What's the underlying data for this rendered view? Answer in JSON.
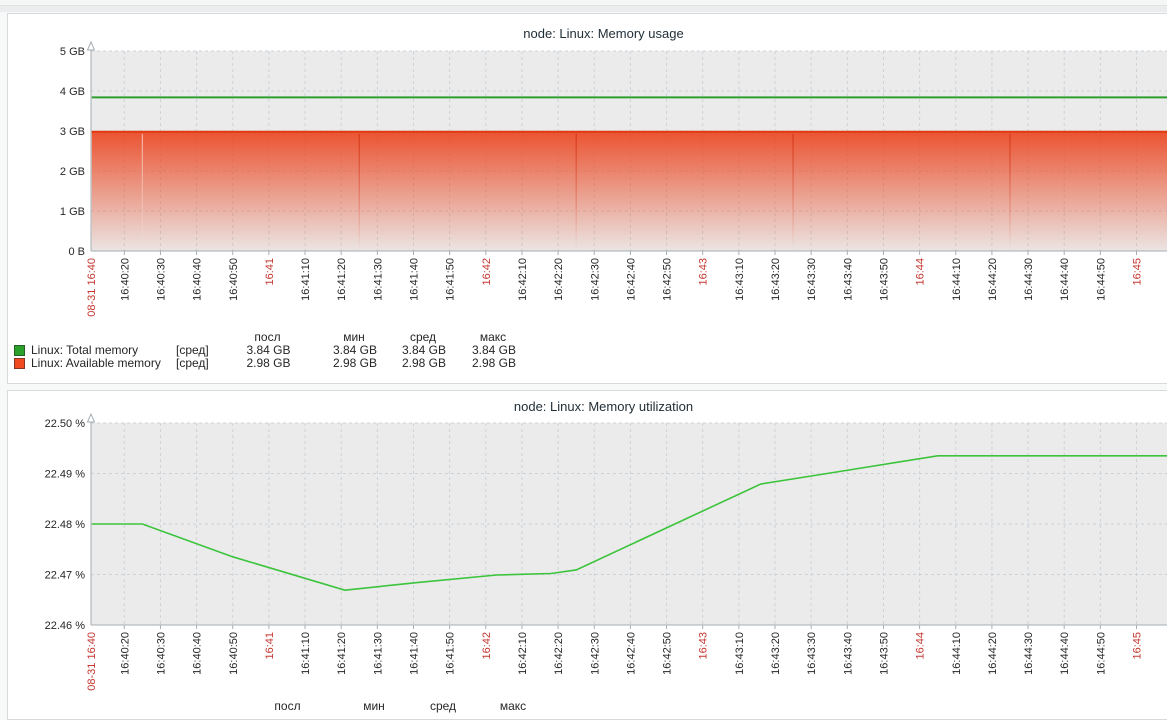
{
  "colors": {
    "plot_background": "#ebebeb",
    "grid": "#ccd3d9",
    "axis": "#a6aeb3",
    "axis_text": "#262626",
    "axis_text_highlight": "#c4362f",
    "title_text": "#1f2d36"
  },
  "chart_data": [
    {
      "type": "area",
      "title": "node: Linux: Memory usage",
      "ylabel": "",
      "xlabel": "",
      "y_unit": "GB",
      "ylim": [
        0,
        5
      ],
      "grid": true,
      "legend_position": "bottom",
      "y_ticks": [
        {
          "label": "5 GB",
          "v": 5
        },
        {
          "label": "4 GB",
          "v": 4
        },
        {
          "label": "3 GB",
          "v": 3
        },
        {
          "label": "2 GB",
          "v": 2
        },
        {
          "label": "1 GB",
          "v": 1
        },
        {
          "label": "0 B",
          "v": 0
        }
      ],
      "x_ticks": [
        {
          "sec": 11,
          "label": "08-31 16:40",
          "em": true,
          "at_axis": true
        },
        {
          "sec": 20,
          "label": "16:40:20"
        },
        {
          "sec": 30,
          "label": "16:40:30"
        },
        {
          "sec": 40,
          "label": "16:40:40"
        },
        {
          "sec": 50,
          "label": "16:40:50"
        },
        {
          "sec": 60,
          "label": "16:41",
          "em": true
        },
        {
          "sec": 70,
          "label": "16:41:10"
        },
        {
          "sec": 80,
          "label": "16:41:20"
        },
        {
          "sec": 90,
          "label": "16:41:30"
        },
        {
          "sec": 100,
          "label": "16:41:40"
        },
        {
          "sec": 110,
          "label": "16:41:50"
        },
        {
          "sec": 120,
          "label": "16:42",
          "em": true
        },
        {
          "sec": 130,
          "label": "16:42:10"
        },
        {
          "sec": 140,
          "label": "16:42:20"
        },
        {
          "sec": 150,
          "label": "16:42:30"
        },
        {
          "sec": 160,
          "label": "16:42:40"
        },
        {
          "sec": 170,
          "label": "16:42:50"
        },
        {
          "sec": 180,
          "label": "16:43",
          "em": true
        },
        {
          "sec": 190,
          "label": "16:43:10"
        },
        {
          "sec": 200,
          "label": "16:43:20"
        },
        {
          "sec": 210,
          "label": "16:43:30"
        },
        {
          "sec": 220,
          "label": "16:43:40"
        },
        {
          "sec": 230,
          "label": "16:43:50"
        },
        {
          "sec": 240,
          "label": "16:44",
          "em": true
        },
        {
          "sec": 250,
          "label": "16:44:10"
        },
        {
          "sec": 260,
          "label": "16:44:20"
        },
        {
          "sec": 270,
          "label": "16:44:30"
        },
        {
          "sec": 280,
          "label": "16:44:40"
        },
        {
          "sec": 290,
          "label": "16:44:50"
        },
        {
          "sec": 300,
          "label": "16:45",
          "em": true
        }
      ],
      "series": [
        {
          "name": "Linux: Total memory",
          "type": "line",
          "color": "#2e9e2e",
          "width": 2,
          "points": [
            [
              11,
              3.84
            ],
            [
              312,
              3.84
            ]
          ]
        },
        {
          "name": "Linux: Available memory",
          "type": "line",
          "color": "#e13a10",
          "width": 2,
          "fill": "gradient",
          "fill_color": "#eb4823",
          "points": [
            [
              11,
              2.98
            ],
            [
              312,
              2.98
            ]
          ],
          "seams": {
            "light": [
              25
            ],
            "dark": [
              85,
              145,
              205,
              265
            ]
          }
        }
      ],
      "legend": {
        "headers": [
          "посл",
          "мин",
          "сред",
          "макс"
        ],
        "rows": [
          {
            "swatch": "#2aa12a",
            "label": "Linux: Total memory",
            "func": "[сред]",
            "values": [
              "3.84 GB",
              "3.84 GB",
              "3.84 GB",
              "3.84 GB"
            ]
          },
          {
            "swatch": "#f14a21",
            "label": "Linux: Available memory",
            "func": "[сред]",
            "values": [
              "2.98 GB",
              "2.98 GB",
              "2.98 GB",
              "2.98 GB"
            ]
          }
        ]
      }
    },
    {
      "type": "line",
      "title": "node: Linux: Memory utilization",
      "ylabel": "",
      "xlabel": "",
      "y_unit": "%",
      "ylim": [
        22.46,
        22.5
      ],
      "grid": true,
      "legend_position": "bottom",
      "y_ticks": [
        {
          "label": "22.50 %",
          "v": 22.5
        },
        {
          "label": "22.49 %",
          "v": 22.49
        },
        {
          "label": "22.48 %",
          "v": 22.48
        },
        {
          "label": "22.47 %",
          "v": 22.47
        },
        {
          "label": "22.46 %",
          "v": 22.46
        }
      ],
      "x_ticks": [
        {
          "sec": 11,
          "label": "08-31 16:40",
          "em": true,
          "at_axis": true
        },
        {
          "sec": 20,
          "label": "16:40:20"
        },
        {
          "sec": 30,
          "label": "16:40:30"
        },
        {
          "sec": 40,
          "label": "16:40:40"
        },
        {
          "sec": 50,
          "label": "16:40:50"
        },
        {
          "sec": 60,
          "label": "16:41",
          "em": true
        },
        {
          "sec": 70,
          "label": "16:41:10"
        },
        {
          "sec": 80,
          "label": "16:41:20"
        },
        {
          "sec": 90,
          "label": "16:41:30"
        },
        {
          "sec": 100,
          "label": "16:41:40"
        },
        {
          "sec": 110,
          "label": "16:41:50"
        },
        {
          "sec": 120,
          "label": "16:42",
          "em": true
        },
        {
          "sec": 130,
          "label": "16:42:10"
        },
        {
          "sec": 140,
          "label": "16:42:20"
        },
        {
          "sec": 150,
          "label": "16:42:30"
        },
        {
          "sec": 160,
          "label": "16:42:40"
        },
        {
          "sec": 170,
          "label": "16:42:50"
        },
        {
          "sec": 180,
          "label": "16:43",
          "em": true
        },
        {
          "sec": 190,
          "label": "16:43:10"
        },
        {
          "sec": 200,
          "label": "16:43:20"
        },
        {
          "sec": 210,
          "label": "16:43:30"
        },
        {
          "sec": 220,
          "label": "16:43:40"
        },
        {
          "sec": 230,
          "label": "16:43:50"
        },
        {
          "sec": 240,
          "label": "16:44",
          "em": true
        },
        {
          "sec": 250,
          "label": "16:44:10"
        },
        {
          "sec": 260,
          "label": "16:44:20"
        },
        {
          "sec": 270,
          "label": "16:44:30"
        },
        {
          "sec": 280,
          "label": "16:44:40"
        },
        {
          "sec": 290,
          "label": "16:44:50"
        },
        {
          "sec": 300,
          "label": "16:45",
          "em": true
        }
      ],
      "series": [
        {
          "type": "line",
          "color": "#3cc43c",
          "width": 1.6,
          "points": [
            [
              11,
              22.48
            ],
            [
              25,
              22.48
            ],
            [
              50,
              22.4735
            ],
            [
              81,
              22.4669
            ],
            [
              101,
              22.4684
            ],
            [
              123,
              22.4699
            ],
            [
              138,
              22.4702
            ],
            [
              145,
              22.4709
            ],
            [
              196,
              22.4879
            ],
            [
              217,
              22.4903
            ],
            [
              245,
              22.4935
            ],
            [
              312,
              22.4935
            ]
          ]
        }
      ],
      "legend": {
        "headers": [
          "посл",
          "мин",
          "сред",
          "макс"
        ],
        "rows": []
      }
    }
  ]
}
